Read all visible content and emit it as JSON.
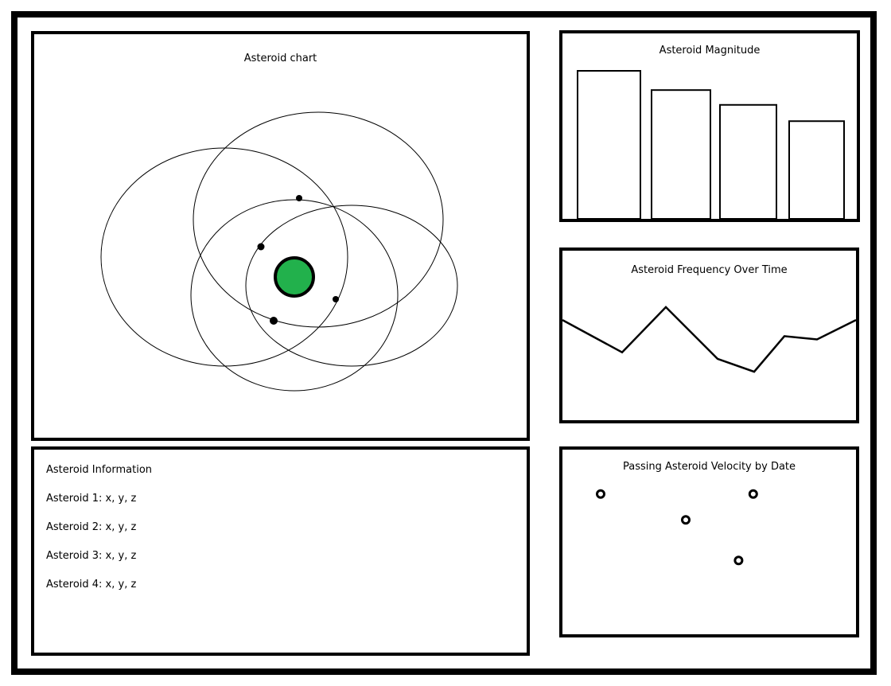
{
  "colors": {
    "sun": "#22b14c",
    "border": "#000000",
    "background": "#ffffff"
  },
  "orbit_panel": {
    "title": "Asteroid chart",
    "sun": {
      "label": ""
    }
  },
  "info_panel": {
    "title": "Asteroid Information",
    "lines": [
      "Asteroid 1: x, y, z",
      "Asteroid 2: x, y, z",
      "Asteroid 3: x, y, z",
      "Asteroid 4: x, y, z"
    ]
  },
  "charts": {
    "magnitude": {
      "title": "Asteroid Magnitude"
    },
    "frequency": {
      "title": "Asteroid Frequency Over Time"
    },
    "velocity": {
      "title": "Passing Asteroid Velocity by Date"
    }
  },
  "chart_data": [
    {
      "type": "bar",
      "title": "Asteroid Magnitude",
      "categories": [
        "",
        "",
        "",
        ""
      ],
      "values": [
        100,
        87,
        77,
        66
      ],
      "ylim": [
        0,
        100
      ],
      "xlabel": "",
      "ylabel": "",
      "grid": false,
      "legend": "none"
    },
    {
      "type": "line",
      "title": "Asteroid Frequency Over Time",
      "x": [
        0,
        1,
        2,
        3,
        4,
        5,
        6,
        7,
        8
      ],
      "values": [
        62,
        42,
        70,
        38,
        30,
        52,
        50,
        62,
        62
      ],
      "ylim": [
        0,
        100
      ],
      "xlabel": "",
      "ylabel": "",
      "grid": false,
      "legend": "none"
    },
    {
      "type": "scatter",
      "title": "Passing Asteroid Velocity by Date",
      "points": [
        {
          "x": 13,
          "y": 76
        },
        {
          "x": 42,
          "y": 62
        },
        {
          "x": 65,
          "y": 76
        },
        {
          "x": 60,
          "y": 40
        }
      ],
      "xlim": [
        0,
        100
      ],
      "ylim": [
        0,
        100
      ],
      "xlabel": "",
      "ylabel": "",
      "grid": false,
      "legend": "none"
    }
  ]
}
